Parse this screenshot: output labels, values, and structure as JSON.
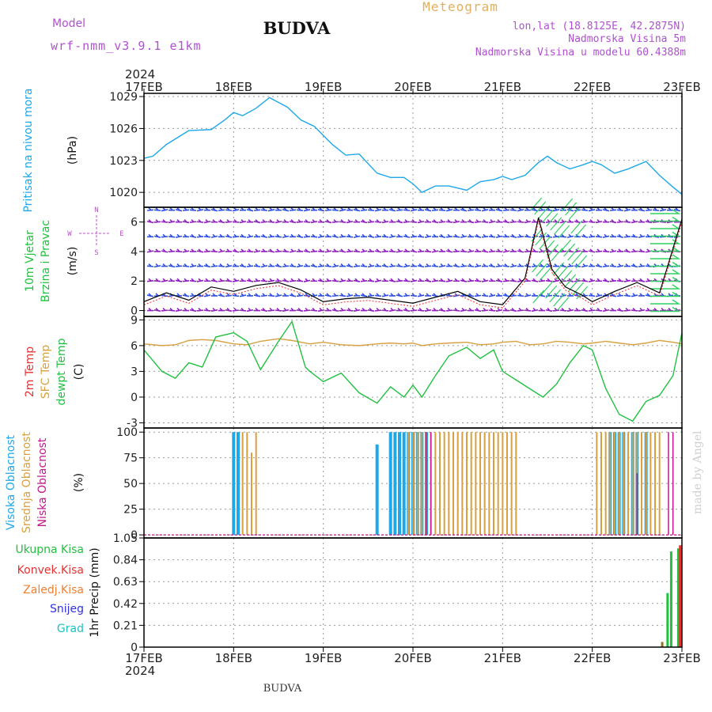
{
  "header": {
    "model_label": "Model",
    "model_name": "wrf-nmm_v3.9.1 e1km",
    "title": "BUDVA",
    "meteogram": "Meteogram",
    "lonlat": "lon,lat (18.8125E, 42.2875N)",
    "elevation": "Nadmorska Visina 5m",
    "model_elevation": "Nadmorska Visina u modelu 60.4388m",
    "year_top": "2024",
    "year_bottom": "2024",
    "footer": "BUDVA",
    "credit": "made by Angel"
  },
  "time_axis": {
    "ticks": [
      "17FEB",
      "18FEB",
      "19FEB",
      "20FEB",
      "21FEB",
      "22FEB",
      "23FEB"
    ]
  },
  "colors": {
    "pressure": "#1fa8e8",
    "wind_title": "#22c040",
    "wind_dirs": "#c050d0",
    "temp2m": "#e83030",
    "sfc": "#d8a040",
    "dewpt": "#22c040",
    "high_cloud": "#1fa8e8",
    "mid_cloud": "#d8a040",
    "low_cloud": "#c0188a",
    "total_precip": "#22c040",
    "conv_precip": "#e83030",
    "frozen_precip": "#f08030",
    "snow": "#3030e0",
    "graupel": "#20c0c0",
    "barb_purple": "#9020c0",
    "barb_blue": "#3050e0"
  },
  "chart_data": [
    {
      "type": "line",
      "ylabel_series": "Pritisak na nivou mora",
      "units": "(hPa)",
      "yticks": [
        1020,
        1023,
        1026,
        1029
      ],
      "ylim": [
        1018.6,
        1029.3
      ],
      "x": [
        0,
        0.1,
        0.25,
        0.5,
        0.75,
        0.9,
        1.0,
        1.1,
        1.25,
        1.4,
        1.6,
        1.75,
        1.9,
        2.1,
        2.25,
        2.4,
        2.6,
        2.75,
        2.9,
        3.0,
        3.1,
        3.25,
        3.4,
        3.6,
        3.75,
        3.9,
        4.0,
        4.1,
        4.25,
        4.4,
        4.5,
        4.6,
        4.75,
        4.9,
        5.0,
        5.1,
        5.25,
        5.4,
        5.6,
        5.75,
        5.9,
        6.0
      ],
      "series": [
        {
          "values": [
            1023.2,
            1023.4,
            1024.5,
            1025.8,
            1025.9,
            1026.8,
            1027.5,
            1027.2,
            1027.9,
            1028.9,
            1028.0,
            1026.8,
            1026.2,
            1024.5,
            1023.5,
            1023.6,
            1021.8,
            1021.4,
            1021.4,
            1020.8,
            1020.0,
            1020.6,
            1020.6,
            1020.2,
            1021.0,
            1021.2,
            1021.5,
            1021.2,
            1021.6,
            1022.8,
            1023.4,
            1022.8,
            1022.2,
            1022.6,
            1022.9,
            1022.6,
            1021.8,
            1022.2,
            1022.9,
            1021.6,
            1020.5,
            1019.8
          ]
        }
      ]
    },
    {
      "type": "line",
      "ylabel_series": [
        "10m Vjetar",
        "Brzina i Pravac"
      ],
      "units": "(m/s)",
      "direction_labels": [
        "N",
        "W",
        "E",
        "S"
      ],
      "yticks": [
        0,
        2,
        4,
        6
      ],
      "ylim": [
        -0.4,
        7.0
      ],
      "x": [
        0,
        0.25,
        0.5,
        0.75,
        1.0,
        1.25,
        1.5,
        1.75,
        2.0,
        2.25,
        2.5,
        2.75,
        3.0,
        3.25,
        3.5,
        3.75,
        4.0,
        4.25,
        4.4,
        4.55,
        4.7,
        4.9,
        5.0,
        5.25,
        5.5,
        5.75,
        6.0
      ],
      "series": [
        {
          "values": [
            0.6,
            1.2,
            0.7,
            1.6,
            1.3,
            1.7,
            1.9,
            1.4,
            0.6,
            0.8,
            0.9,
            0.7,
            0.5,
            0.9,
            1.3,
            0.6,
            0.4,
            2.2,
            6.3,
            2.8,
            1.6,
            1.0,
            0.6,
            1.3,
            1.9,
            1.2,
            6.2
          ]
        }
      ]
    },
    {
      "type": "line",
      "ylabel_series": [
        "2m Temp",
        "SFC Temp",
        "dewpt Temp"
      ],
      "units": "(C)",
      "yticks": [
        -3,
        0,
        3,
        6,
        9
      ],
      "ylim": [
        -3.6,
        9.4
      ],
      "x": [
        0,
        0.2,
        0.35,
        0.5,
        0.65,
        0.8,
        1.0,
        1.15,
        1.3,
        1.5,
        1.65,
        1.8,
        1.85,
        2.0,
        2.2,
        2.4,
        2.6,
        2.75,
        2.9,
        3.0,
        3.1,
        3.25,
        3.4,
        3.6,
        3.75,
        3.9,
        4.0,
        4.15,
        4.3,
        4.45,
        4.6,
        4.75,
        4.9,
        5.0,
        5.15,
        5.3,
        5.45,
        5.6,
        5.75,
        5.9,
        6.0
      ],
      "series": [
        {
          "name": "SFC Temp",
          "values": [
            6.2,
            6.0,
            6.1,
            6.6,
            6.7,
            6.6,
            6.2,
            6.1,
            6.5,
            6.8,
            6.6,
            6.3,
            6.2,
            6.4,
            6.1,
            6.0,
            6.2,
            6.3,
            6.2,
            6.3,
            6.0,
            6.2,
            6.3,
            6.4,
            6.1,
            6.2,
            6.4,
            6.5,
            6.1,
            6.2,
            6.5,
            6.4,
            6.2,
            6.3,
            6.5,
            6.3,
            6.1,
            6.3,
            6.6,
            6.4,
            6.2
          ]
        },
        {
          "name": "dewpt Temp",
          "values": [
            5.5,
            3.0,
            2.2,
            4.0,
            3.5,
            7.0,
            7.5,
            6.5,
            3.2,
            6.5,
            8.8,
            3.5,
            3.0,
            1.8,
            2.8,
            0.5,
            -0.7,
            1.2,
            0.0,
            1.4,
            0.0,
            2.5,
            4.8,
            5.8,
            4.5,
            5.5,
            3.0,
            2.0,
            1.0,
            0.0,
            1.5,
            4.0,
            6.0,
            5.5,
            1.0,
            -2.0,
            -2.8,
            -0.5,
            0.2,
            2.5,
            7.5
          ]
        }
      ]
    },
    {
      "type": "bar",
      "ylabel_series": [
        "Visoka Oblacnost",
        "Srednja Oblacnost",
        "Niska Oblacnost"
      ],
      "units": "(%)",
      "yticks": [
        0,
        25,
        50,
        75,
        100
      ],
      "ylim": [
        -3,
        104
      ],
      "series": [
        {
          "name": "Visoka Oblacnost",
          "x": [
            1.0,
            1.05,
            2.6,
            2.75,
            2.8,
            2.85,
            2.9,
            2.95,
            3.0,
            3.05,
            3.1,
            3.15,
            5.2,
            5.25,
            5.3,
            5.35,
            5.45,
            5.5,
            5.6
          ],
          "values": [
            100,
            100,
            88,
            100,
            100,
            100,
            100,
            100,
            100,
            100,
            100,
            100,
            100,
            100,
            100,
            100,
            100,
            100,
            100
          ]
        },
        {
          "name": "Srednja Oblacnost",
          "x": [
            1.1,
            1.15,
            1.2,
            1.25,
            2.95,
            3.0,
            3.05,
            3.1,
            3.15,
            3.2,
            3.25,
            3.3,
            3.35,
            3.4,
            3.45,
            3.5,
            3.55,
            3.6,
            3.65,
            3.7,
            3.75,
            3.8,
            3.85,
            3.9,
            3.95,
            4.0,
            4.05,
            4.1,
            4.15,
            5.05,
            5.1,
            5.15,
            5.2,
            5.25,
            5.3,
            5.35,
            5.4,
            5.45,
            5.5,
            5.55,
            5.6,
            5.65,
            5.7,
            5.75
          ],
          "values": [
            100,
            100,
            80,
            100,
            100,
            100,
            100,
            100,
            100,
            100,
            100,
            100,
            100,
            100,
            100,
            100,
            100,
            100,
            100,
            100,
            100,
            100,
            100,
            100,
            100,
            100,
            100,
            100,
            100,
            100,
            100,
            100,
            100,
            100,
            100,
            100,
            100,
            100,
            100,
            100,
            100,
            100,
            100,
            100
          ]
        },
        {
          "name": "Niska Oblacnost",
          "x": [
            3.15,
            3.2,
            5.5,
            5.85,
            5.9
          ],
          "values": [
            100,
            100,
            60,
            100,
            100
          ]
        }
      ]
    },
    {
      "type": "bar",
      "ylabel_series": [
        "Ukupna Kisa",
        "Konvek.Kisa",
        "Zaledj.Kisa",
        "Snijeg",
        "Grad"
      ],
      "units": "1hr Precip (mm)",
      "yticks": [
        0,
        0.21,
        0.42,
        0.63,
        0.84,
        1.05
      ],
      "ylim": [
        0,
        1.05
      ],
      "series": [
        {
          "name": "Ukupna Kisa",
          "x": [
            5.78,
            5.84,
            5.88,
            5.96
          ],
          "values": [
            0.05,
            0.52,
            0.92,
            0.95
          ]
        },
        {
          "name": "Konvek.Kisa",
          "x": [
            5.98
          ],
          "values": [
            0.98
          ]
        }
      ]
    }
  ]
}
